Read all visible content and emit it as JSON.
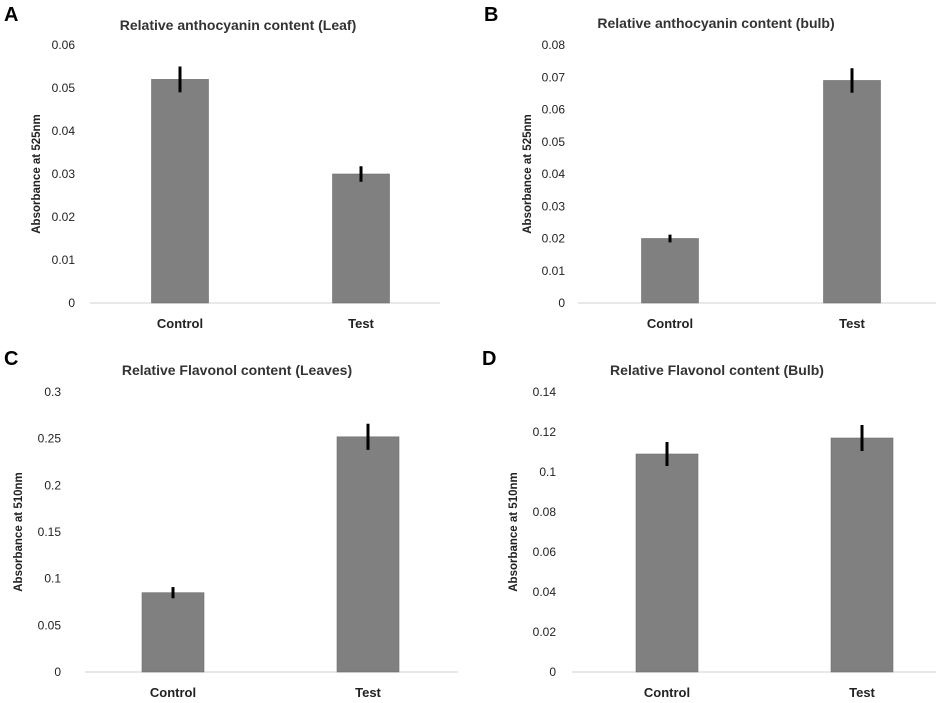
{
  "chart_data": [
    {
      "panel": "A",
      "type": "bar",
      "title": "Relative anthocyanin content (Leaf)",
      "ylabel": "Absorbance at 525nm",
      "xlabel": "",
      "ylim": [
        0,
        0.06
      ],
      "yticks": [
        0,
        0.01,
        0.02,
        0.03,
        0.04,
        0.05,
        0.06
      ],
      "ytick_labels": [
        "0",
        "0.01",
        "0.02",
        "0.03",
        "0.04",
        "0.05",
        "0.06"
      ],
      "categories": [
        "Control",
        "Test"
      ],
      "values": [
        0.052,
        0.03
      ],
      "errors": [
        0.003,
        0.0018
      ],
      "bar_color": "#808080",
      "grid": false
    },
    {
      "panel": "B",
      "type": "bar",
      "title": "Relative anthocyanin content (bulb)",
      "ylabel": "Absorbance at 525nm",
      "xlabel": "",
      "ylim": [
        0,
        0.08
      ],
      "yticks": [
        0,
        0.01,
        0.02,
        0.03,
        0.04,
        0.05,
        0.06,
        0.07,
        0.08
      ],
      "ytick_labels": [
        "0",
        "0.01",
        "0.02",
        "0.03",
        "0.04",
        "0.05",
        "0.06",
        "0.07",
        "0.08"
      ],
      "categories": [
        "Control",
        "Test"
      ],
      "values": [
        0.02,
        0.069
      ],
      "errors": [
        0.0012,
        0.0038
      ],
      "bar_color": "#808080",
      "grid": false
    },
    {
      "panel": "C",
      "type": "bar",
      "title": "Relative Flavonol content (Leaves)",
      "ylabel": "Absorbance at 510nm",
      "xlabel": "",
      "ylim": [
        0,
        0.3
      ],
      "yticks": [
        0,
        0.05,
        0.1,
        0.15,
        0.2,
        0.25,
        0.3
      ],
      "ytick_labels": [
        "0",
        "0.05",
        "0.1",
        "0.15",
        "0.2",
        "0.25",
        "0.3"
      ],
      "categories": [
        "Control",
        "Test"
      ],
      "values": [
        0.085,
        0.252
      ],
      "errors": [
        0.006,
        0.014
      ],
      "bar_color": "#808080",
      "grid": false
    },
    {
      "panel": "D",
      "type": "bar",
      "title": "Relative Flavonol content (Bulb)",
      "ylabel": "Absorbance at 510nm",
      "xlabel": "",
      "ylim": [
        0,
        0.14
      ],
      "yticks": [
        0,
        0.02,
        0.04,
        0.06,
        0.08,
        0.1,
        0.12,
        0.14
      ],
      "ytick_labels": [
        "0",
        "0.02",
        "0.04",
        "0.06",
        "0.08",
        "0.1",
        "0.12",
        "0.14"
      ],
      "categories": [
        "Control",
        "Test"
      ],
      "values": [
        0.109,
        0.117
      ],
      "errors": [
        0.006,
        0.0065
      ],
      "bar_color": "#808080",
      "grid": false
    }
  ]
}
